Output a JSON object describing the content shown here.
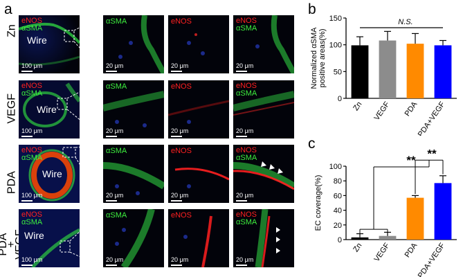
{
  "panel_labels": {
    "a": "a",
    "b": "b",
    "c": "c"
  },
  "rows": [
    {
      "label": "Zn",
      "wire": "Wire"
    },
    {
      "label": "VEGF",
      "wire": "Wire"
    },
    {
      "label": "PDA",
      "wire": "Wire"
    },
    {
      "label": "PDA\n+\nVEGF",
      "wire": "Wire"
    }
  ],
  "tile_text": {
    "enos": "eNOS",
    "asma": "αSMA",
    "scale_100": "100 μm",
    "scale_20": "20 μm"
  },
  "colors": {
    "zn": "#000000",
    "vegf": "#8c8c8c",
    "pda": "#ff8a00",
    "pda_vegf": "#0000ff",
    "enos": "#ff2020",
    "asma": "#3ef03e"
  },
  "chart_data": [
    {
      "type": "bar",
      "categories": [
        "Zn",
        "VEGF",
        "PDA",
        "PDA+VEGF"
      ],
      "values": [
        99,
        108,
        102,
        99
      ],
      "errors": [
        16,
        17,
        19,
        9
      ],
      "ylabel": "Normalized αSMA\npositive areas(%)",
      "ylim": [
        0,
        150
      ],
      "yticks": [
        0,
        50,
        100,
        150
      ],
      "annotation": "N.S."
    },
    {
      "type": "bar",
      "categories": [
        "Zn",
        "VEGF",
        "PDA",
        "PDA+VEGF"
      ],
      "values": [
        3,
        5,
        57,
        77
      ],
      "errors": [
        5,
        5,
        3,
        10
      ],
      "ylabel": "EC coverage(%)",
      "ylim": [
        0,
        100
      ],
      "yticks": [
        0,
        20,
        40,
        60,
        80,
        100
      ],
      "annotations": [
        "**",
        "**"
      ]
    }
  ]
}
